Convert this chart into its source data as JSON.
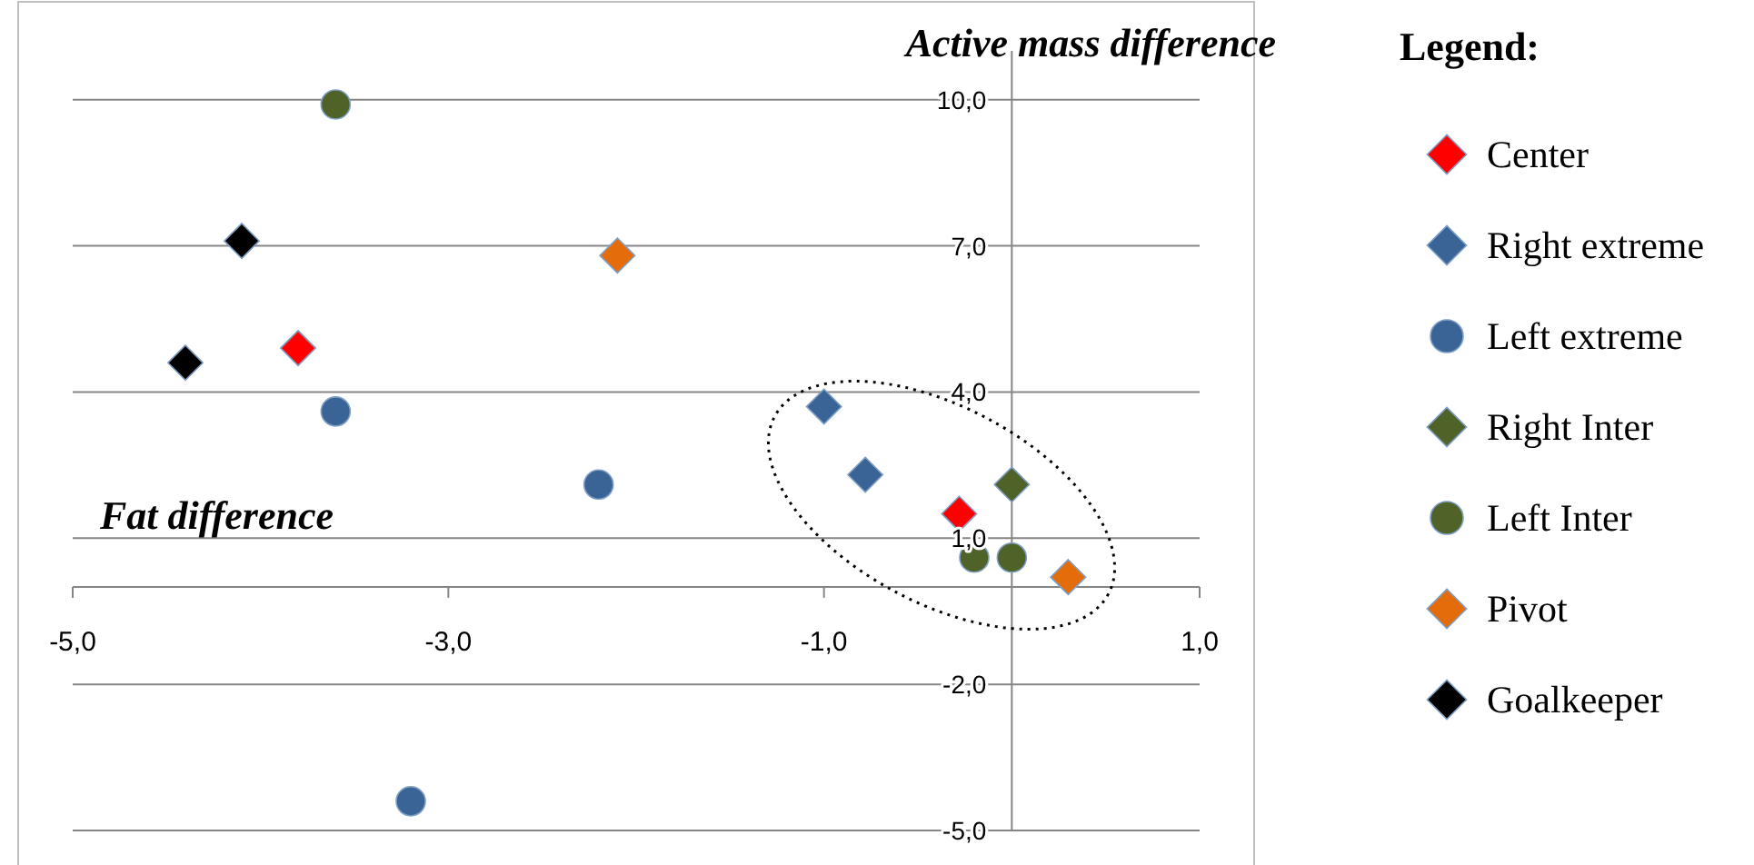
{
  "chart_data": {
    "type": "scatter",
    "xlabel": "Fat difference",
    "ylabel": "Active mass difference",
    "legend_title": "Legend:",
    "xlim": [
      -5,
      1
    ],
    "ylim": [
      -5,
      11
    ],
    "xticks": [
      {
        "value": -5,
        "label": "-5,0"
      },
      {
        "value": -3,
        "label": "-3,0"
      },
      {
        "value": -1,
        "label": "-1,0"
      },
      {
        "value": 1,
        "label": "1,0"
      }
    ],
    "yticks": [
      {
        "value": -5,
        "label": "-5,0"
      },
      {
        "value": -2,
        "label": "-2,0"
      },
      {
        "value": 1,
        "label": "1,0"
      },
      {
        "value": 4,
        "label": "4,0"
      },
      {
        "value": 7,
        "label": "7,0"
      },
      {
        "value": 10,
        "label": "10,0"
      }
    ],
    "grid": "y",
    "legend": "right",
    "series": [
      {
        "name": "Center",
        "color": "#ff0000",
        "marker": "diamond",
        "x": [
          -3.8,
          -0.28
        ],
        "values": [
          4.9,
          1.5
        ]
      },
      {
        "name": "Right extreme",
        "color": "#3a6496",
        "marker": "diamond",
        "x": [
          -1.0,
          -0.78
        ],
        "values": [
          3.7,
          2.3
        ]
      },
      {
        "name": "Left extreme",
        "color": "#3a6496",
        "marker": "circle",
        "x": [
          -3.6,
          -2.2,
          -3.2
        ],
        "values": [
          3.6,
          2.1,
          -4.4
        ]
      },
      {
        "name": "Right Inter",
        "color": "#4f6228",
        "marker": "diamond",
        "x": [
          0.0
        ],
        "values": [
          2.1
        ]
      },
      {
        "name": "Left Inter",
        "color": "#4f6228",
        "marker": "circle",
        "x": [
          -3.6,
          -0.2,
          0.0
        ],
        "values": [
          9.9,
          0.6,
          0.6
        ]
      },
      {
        "name": "Pivot",
        "color": "#e46c0a",
        "marker": "diamond",
        "x": [
          -2.1,
          0.3
        ],
        "values": [
          6.8,
          0.2
        ]
      },
      {
        "name": "Goalkeeper",
        "color": "#000000",
        "marker": "diamond",
        "x": [
          -4.1,
          -4.4
        ],
        "values": [
          7.1,
          4.6
        ]
      }
    ]
  }
}
